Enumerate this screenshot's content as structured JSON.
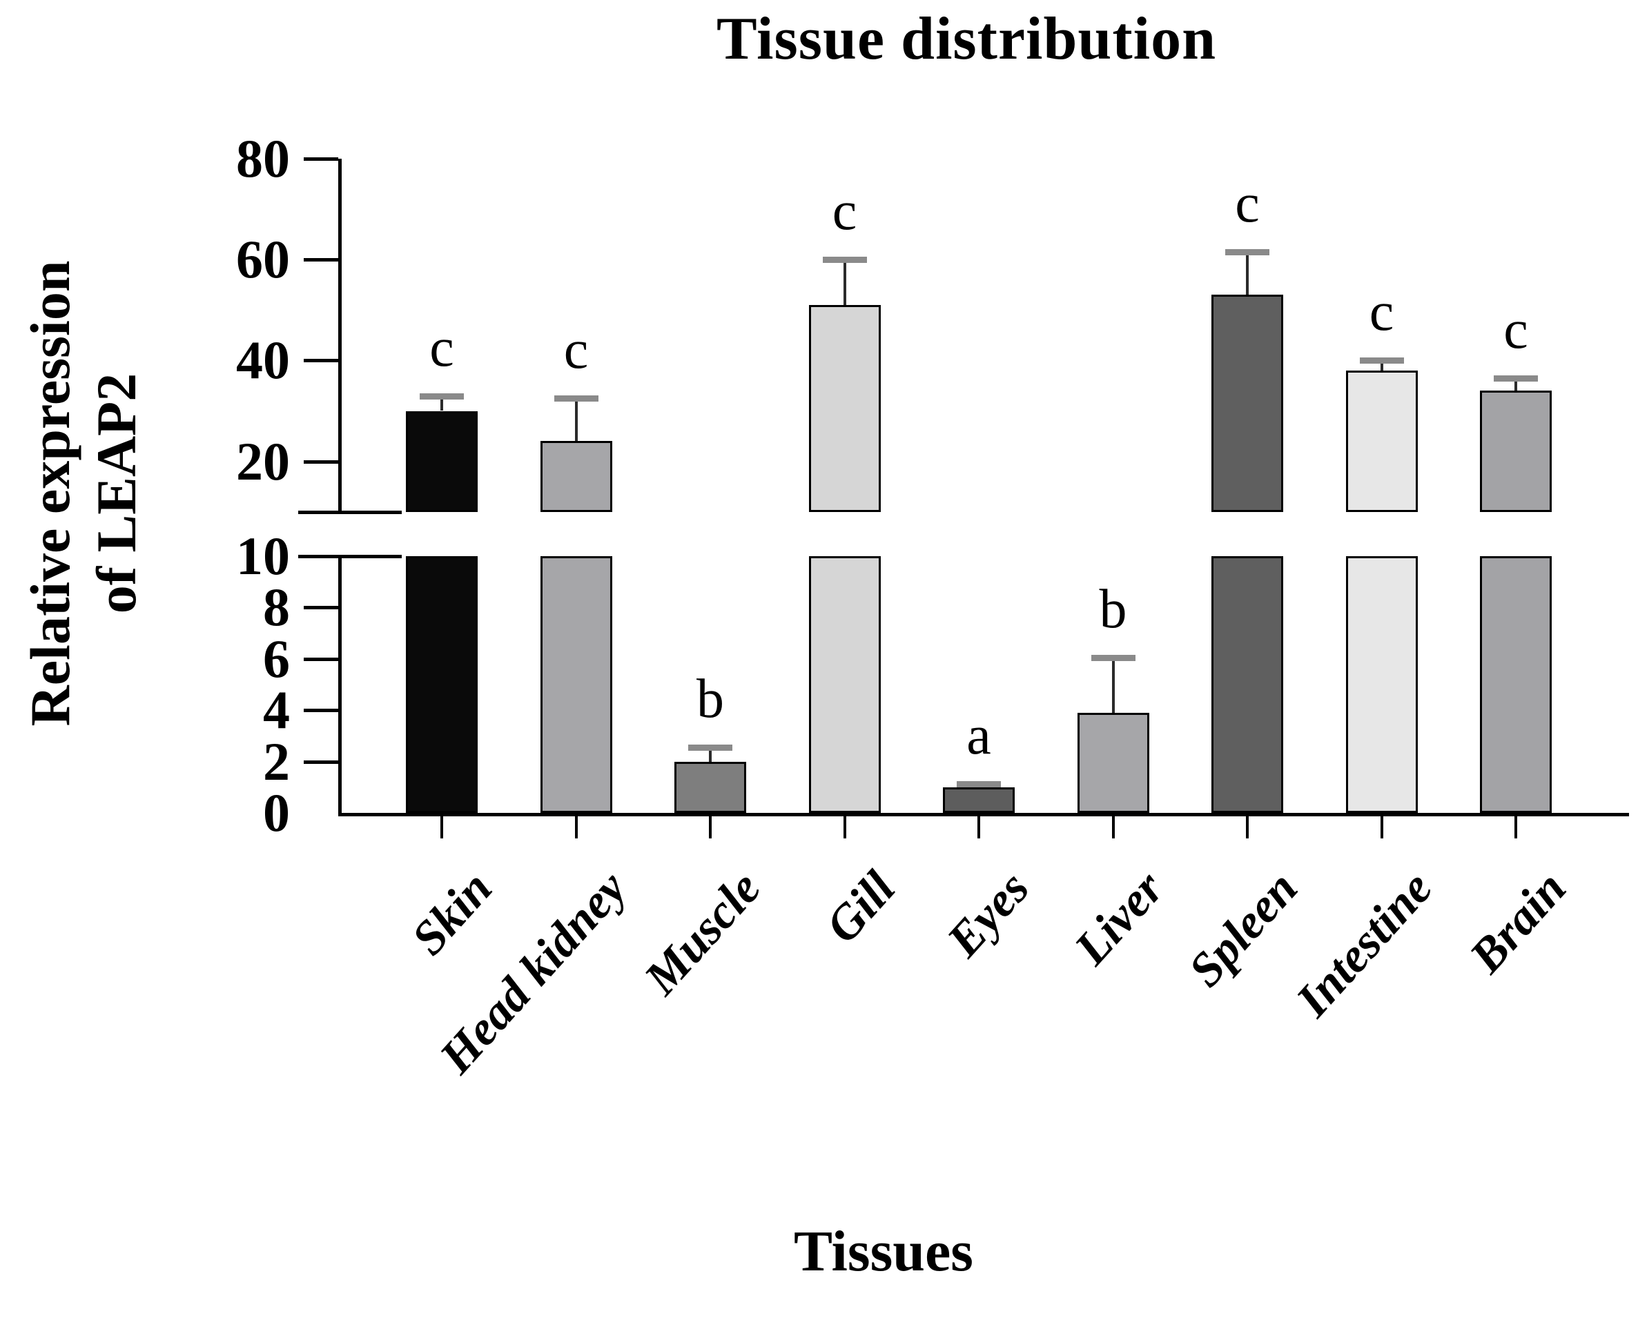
{
  "figure": {
    "title": "Tissue distribution",
    "y_axis_label_line1": "Relative expression",
    "y_axis_label_line2": "of LEAP2",
    "x_axis_label": "Tissues"
  },
  "chart_data": {
    "type": "bar",
    "title": "Tissue distribution",
    "xlabel": "Tissues",
    "ylabel": "Relative expression of LEAP2",
    "broken_axis": true,
    "lower_segment": {
      "range": [
        0,
        10
      ],
      "ticks": [
        0,
        2,
        4,
        6,
        8,
        10
      ]
    },
    "upper_segment": {
      "range": [
        10,
        80
      ],
      "ticks": [
        20,
        40,
        60,
        80
      ]
    },
    "grid": false,
    "legend": false,
    "categories": [
      "Skin",
      "Head kidney",
      "Muscle",
      "Gill",
      "Eyes",
      "Liver",
      "Spleen",
      "Intestine",
      "Brain"
    ],
    "values": [
      30,
      24,
      2,
      51,
      1,
      3.9,
      53,
      38,
      34
    ],
    "error_bar_tops": [
      33,
      32.5,
      2.55,
      60,
      1.12,
      6.05,
      61.5,
      40,
      36.5
    ],
    "significance_letters": [
      "c",
      "c",
      "b",
      "c",
      "a",
      "b",
      "c",
      "c",
      "c"
    ],
    "bar_colors": [
      "#0a0a0a",
      "#a6a6a9",
      "#7e7e7e",
      "#d6d6d6",
      "#5d5d5d",
      "#a6a6a9",
      "#5f5f5f",
      "#e7e7e7",
      "#a3a3a6"
    ],
    "bar_outline_color": "#000000",
    "error_cap_color": "#8a8a8a",
    "error_stem_color": "#2b2b2b",
    "axis_color": "#000000",
    "background_color": "#ffffff"
  }
}
